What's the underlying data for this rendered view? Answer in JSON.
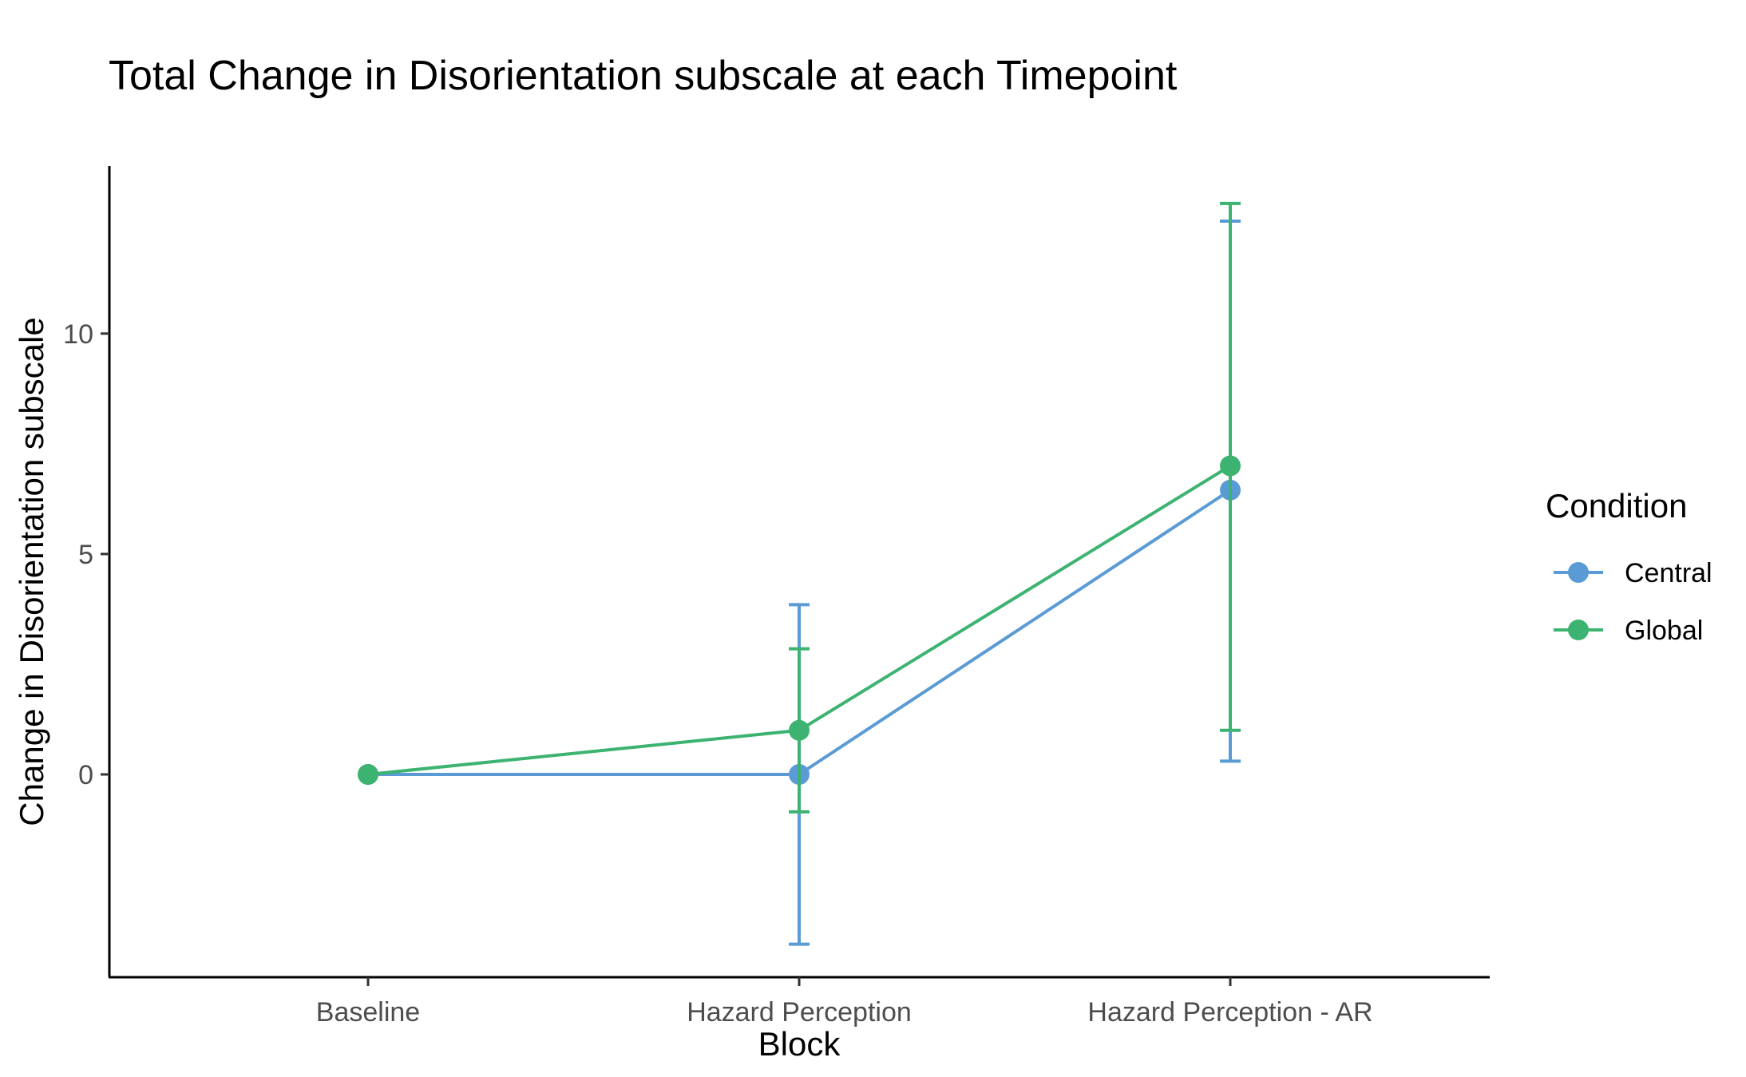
{
  "chart_data": {
    "type": "line",
    "title": "Total Change in Disorientation subscale at each Timepoint",
    "xlabel": "Block",
    "ylabel": "Change in Disorientation subscale",
    "categories": [
      "Baseline",
      "Hazard Perception",
      "Hazard Perception - AR"
    ],
    "y_ticks": [
      0,
      5,
      10
    ],
    "ylim": [
      -4.6,
      13.8
    ],
    "grid": false,
    "legend": {
      "title": "Condition",
      "placement": "right"
    },
    "series": [
      {
        "name": "Central",
        "color": "#5B9BD5",
        "values": [
          0,
          0,
          6.45
        ],
        "error_low": [
          0,
          -3.85,
          0.3
        ],
        "error_high": [
          0,
          3.85,
          12.55
        ]
      },
      {
        "name": "Global",
        "color": "#3CB371",
        "values": [
          0,
          1.0,
          7.0
        ],
        "error_low": [
          0,
          -0.85,
          1.0
        ],
        "error_high": [
          0,
          2.85,
          12.95
        ]
      }
    ]
  }
}
